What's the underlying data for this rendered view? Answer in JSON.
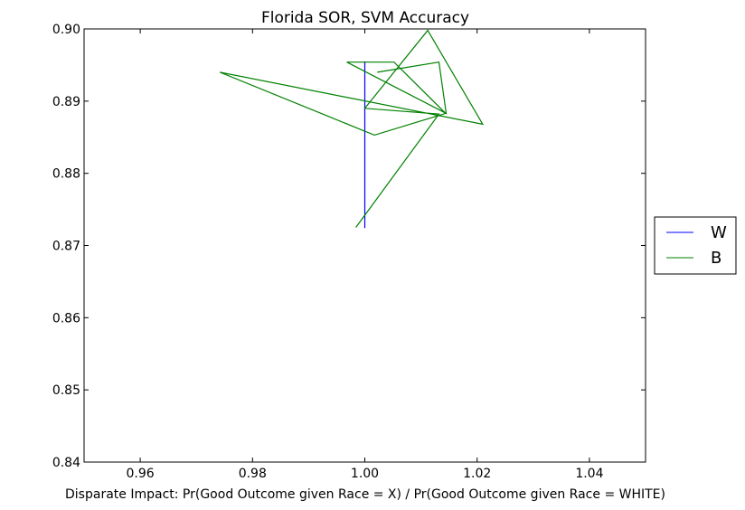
{
  "chart_data": {
    "type": "line",
    "title": "Florida SOR, SVM Accuracy",
    "xlabel": "Disparate Impact: Pr(Good Outcome given Race = X) / Pr(Good Outcome given Race = WHITE)",
    "ylabel": "",
    "xlim": [
      0.95,
      1.05
    ],
    "ylim": [
      0.84,
      0.9
    ],
    "xticks": [
      "0.96",
      "0.98",
      "1.00",
      "1.02",
      "1.04"
    ],
    "yticks": [
      "0.84",
      "0.85",
      "0.86",
      "0.87",
      "0.88",
      "0.89",
      "0.90"
    ],
    "grid": false,
    "legend_position": "outside-right",
    "series": [
      {
        "name": "W",
        "color": "#0000ff",
        "x": [
          1.0,
          1.0,
          1.0,
          1.0,
          1.0,
          1.0,
          1.0,
          1.0
        ],
        "y": [
          0.8724,
          0.89,
          0.8855,
          0.8955,
          0.8895,
          0.8868,
          0.892,
          0.888
        ]
      },
      {
        "name": "B",
        "color": "#008000",
        "x": [
          1.0022,
          1.0132,
          1.0145,
          0.9968,
          1.0052,
          1.0144,
          1.0017,
          0.9742,
          1.021,
          1.0112,
          1.0,
          1.0132,
          0.9984
        ],
        "y": [
          0.894,
          0.8954,
          0.8883,
          0.8954,
          0.8954,
          0.8883,
          0.8853,
          0.894,
          0.8868,
          0.8998,
          0.889,
          0.8882,
          0.8725
        ]
      }
    ]
  }
}
